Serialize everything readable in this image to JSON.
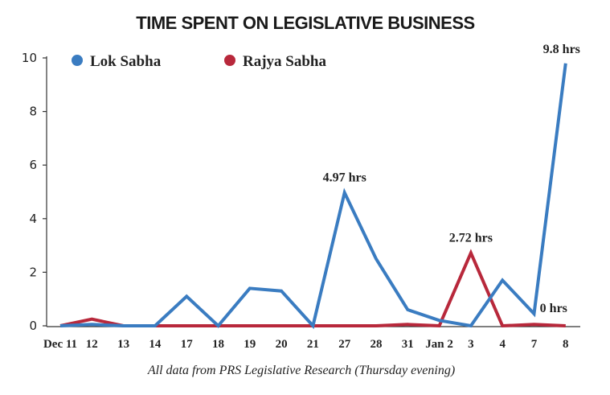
{
  "chart_data": {
    "type": "line",
    "title": "TIME SPENT ON LEGISLATIVE BUSINESS",
    "xlabel": "",
    "ylabel": "",
    "ylim": [
      0,
      10
    ],
    "yticks": [
      "0",
      "2",
      "4",
      "6",
      "8",
      "10"
    ],
    "categories": [
      "Dec 11",
      "12",
      "13",
      "14",
      "17",
      "18",
      "19",
      "20",
      "21",
      "27",
      "28",
      "31",
      "Jan 2",
      "3",
      "4",
      "7",
      "8"
    ],
    "series": [
      {
        "name": "Lok Sabha",
        "color": "#3a7cc1",
        "values": [
          0,
          0.05,
          0,
          0,
          1.1,
          0,
          1.4,
          1.3,
          0,
          4.97,
          2.5,
          0.6,
          0.2,
          0,
          1.7,
          0.45,
          9.8
        ]
      },
      {
        "name": "Rajya Sabha",
        "color": "#b8283b",
        "values": [
          0,
          0.25,
          0,
          0,
          0,
          0,
          0,
          0,
          0,
          0,
          0,
          0.05,
          0,
          2.72,
          0,
          0.05,
          0
        ]
      }
    ],
    "annotations": [
      {
        "text": "4.97 hrs",
        "series": 0,
        "index": 9
      },
      {
        "text": "2.72 hrs",
        "series": 1,
        "index": 13
      },
      {
        "text": "9.8 hrs",
        "series": 0,
        "index": 16
      },
      {
        "text": "0 hrs",
        "series": 1,
        "index": 16
      }
    ],
    "legend_position": "top-left",
    "grid": false,
    "source_note": "All data from PRS Legislative Research (Thursday evening)"
  }
}
